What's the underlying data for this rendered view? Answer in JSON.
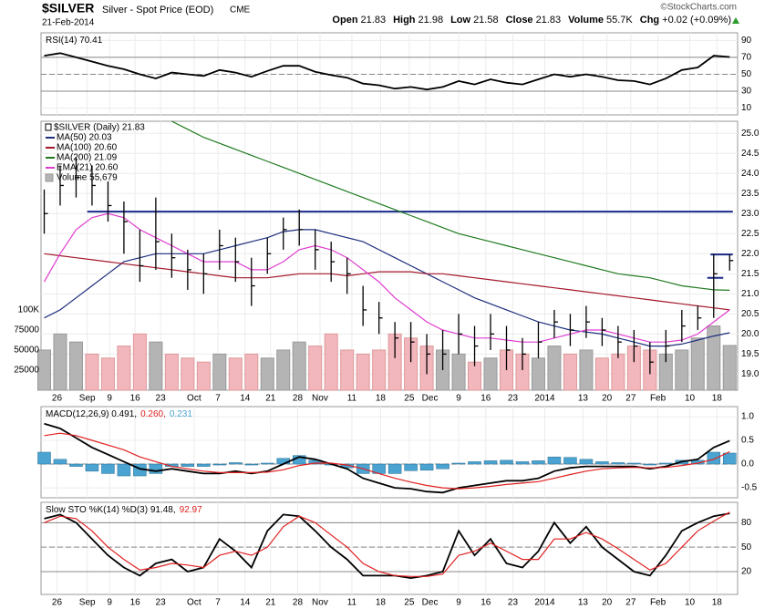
{
  "header": {
    "symbol": "$SILVER",
    "name": "Silver - Spot Price (EOD)",
    "exchange": "CME",
    "date": "21-Feb-2014",
    "credit": "©StockCharts.com",
    "quote": [
      {
        "label": "Open",
        "value": "21.83"
      },
      {
        "label": "High",
        "value": "21.98"
      },
      {
        "label": "Low",
        "value": "21.58"
      },
      {
        "label": "Close",
        "value": "21.83"
      },
      {
        "label": "Volume",
        "value": "55.7K"
      },
      {
        "label": "Chg",
        "value": "+0.02 (+0.09%)"
      }
    ]
  },
  "chart_data": [
    {
      "type": "line",
      "ylim": [
        2,
        99
      ],
      "yticks": [
        10,
        30,
        50,
        70,
        90
      ],
      "hlines": [
        {
          "value": 30
        },
        {
          "value": 70
        }
      ],
      "midline": 50,
      "series": [
        {
          "name": "RSI(14) 70.41",
          "color": "#000000",
          "values": [
            72,
            75,
            70,
            65,
            60,
            56,
            50,
            45,
            52,
            50,
            48,
            55,
            52,
            47,
            54,
            60,
            60,
            53,
            49,
            46,
            39,
            37,
            33,
            35,
            32,
            35,
            42,
            38,
            44,
            40,
            38,
            44,
            50,
            47,
            50,
            47,
            43,
            42,
            38,
            45,
            55,
            58,
            72,
            70.41
          ]
        }
      ]
    },
    {
      "type": "ohlc",
      "title": "$SILVER (Daily) 21.83",
      "xlim": [
        -0.2,
        43.5
      ],
      "xticks": [
        {
          "value": 0.8,
          "label": "26"
        },
        {
          "value": 2.7,
          "label": "Sep"
        },
        {
          "value": 4.1,
          "label": "9"
        },
        {
          "value": 5.7,
          "label": "16"
        },
        {
          "value": 7.3,
          "label": "23"
        },
        {
          "value": 9.4,
          "label": "Oct"
        },
        {
          "value": 10.9,
          "label": "7"
        },
        {
          "value": 12.6,
          "label": "14"
        },
        {
          "value": 14.2,
          "label": "21"
        },
        {
          "value": 15.9,
          "label": "28"
        },
        {
          "value": 17.3,
          "label": "Nov"
        },
        {
          "value": 19.3,
          "label": "11"
        },
        {
          "value": 21.1,
          "label": "18"
        },
        {
          "value": 22.9,
          "label": "25"
        },
        {
          "value": 24.2,
          "label": "Dec"
        },
        {
          "value": 26.0,
          "label": "9"
        },
        {
          "value": 27.7,
          "label": "16"
        },
        {
          "value": 29.4,
          "label": "23"
        },
        {
          "value": 31.4,
          "label": "2014"
        },
        {
          "value": 33.8,
          "label": "13"
        },
        {
          "value": 35.3,
          "label": "20"
        },
        {
          "value": 36.8,
          "label": "27"
        },
        {
          "value": 38.5,
          "label": "Feb"
        },
        {
          "value": 40.5,
          "label": "10"
        },
        {
          "value": 42.2,
          "label": "18"
        }
      ],
      "ylim": [
        18.6,
        25.3
      ],
      "yticks": [
        {
          "value": 19,
          "label": "19.0"
        },
        19.5,
        {
          "value": 20,
          "label": "20.0"
        },
        20.5,
        {
          "value": 21,
          "label": "21.0"
        },
        21.5,
        {
          "value": 22,
          "label": "22.0"
        },
        22.5,
        {
          "value": 23,
          "label": "23.0"
        },
        23.5,
        {
          "value": 24,
          "label": "24.0"
        },
        24.5,
        {
          "value": 25,
          "label": "25.0"
        }
      ],
      "bar_color": "#000000",
      "high": [
        23.6,
        24.2,
        24.4,
        24.2,
        23.8,
        23.3,
        22.6,
        23.4,
        22.5,
        22.1,
        22.0,
        22.6,
        22.4,
        21.9,
        22.4,
        22.9,
        23.1,
        22.6,
        22.3,
        21.9,
        21.2,
        20.8,
        20.3,
        20.3,
        20.0,
        20.1,
        20.5,
        20.2,
        20.5,
        20.2,
        19.9,
        20.3,
        20.6,
        20.5,
        20.7,
        20.4,
        20.2,
        20.1,
        19.8,
        20.1,
        20.6,
        20.7,
        22.0,
        21.98
      ],
      "low": [
        22.5,
        23.2,
        23.4,
        23.2,
        22.8,
        22.0,
        21.3,
        21.6,
        21.4,
        21.1,
        21.0,
        21.6,
        21.3,
        20.7,
        21.5,
        22.1,
        22.2,
        21.6,
        21.3,
        21.0,
        20.2,
        20.0,
        19.4,
        19.3,
        19.0,
        19.1,
        19.5,
        19.2,
        19.6,
        19.1,
        19.1,
        19.4,
        19.9,
        19.7,
        19.9,
        19.7,
        19.4,
        19.3,
        19.0,
        19.3,
        19.8,
        20.1,
        20.4,
        21.58
      ],
      "close": [
        23.0,
        23.7,
        23.9,
        23.7,
        23.2,
        22.8,
        21.7,
        22.3,
        21.9,
        21.6,
        21.5,
        22.2,
        21.8,
        21.2,
        22.0,
        22.6,
        22.6,
        22.1,
        21.8,
        21.5,
        20.6,
        20.4,
        19.9,
        19.8,
        19.5,
        19.5,
        20.0,
        19.7,
        20.0,
        19.6,
        19.5,
        19.8,
        20.3,
        20.1,
        20.3,
        20.1,
        19.8,
        19.7,
        19.3,
        19.7,
        20.2,
        20.4,
        21.5,
        21.83
      ],
      "series": [
        {
          "name": "MA(50) 20.03",
          "color": "#1c2c7c",
          "values": [
            20.4,
            20.6,
            20.9,
            21.2,
            21.5,
            21.8,
            21.9,
            22.0,
            22.0,
            22.0,
            22.0,
            22.1,
            22.2,
            22.3,
            22.4,
            22.55,
            22.6,
            22.6,
            22.5,
            22.4,
            22.3,
            22.1,
            21.9,
            21.7,
            21.5,
            21.3,
            21.1,
            20.9,
            20.75,
            20.6,
            20.45,
            20.3,
            20.2,
            20.1,
            20.05,
            20.0,
            19.9,
            19.8,
            19.7,
            19.7,
            19.75,
            19.85,
            19.95,
            20.03
          ]
        },
        {
          "name": "MA(100) 20.60",
          "color": "#a3182c",
          "values": [
            22.0,
            21.95,
            21.9,
            21.85,
            21.8,
            21.75,
            21.7,
            21.65,
            21.6,
            21.55,
            21.5,
            21.45,
            21.4,
            21.4,
            21.4,
            21.45,
            21.5,
            21.5,
            21.5,
            21.45,
            21.5,
            21.55,
            21.55,
            21.55,
            21.5,
            21.5,
            21.45,
            21.4,
            21.35,
            21.3,
            21.25,
            21.2,
            21.15,
            21.1,
            21.05,
            21.0,
            20.95,
            20.9,
            20.85,
            20.8,
            20.75,
            20.7,
            20.65,
            20.6
          ]
        },
        {
          "name": "MA(200) 21.09",
          "color": "#1f7a1f",
          "values": [
            null,
            null,
            null,
            null,
            null,
            null,
            null,
            null,
            25.3,
            25.1,
            24.9,
            24.75,
            24.6,
            24.45,
            24.3,
            24.15,
            24.0,
            23.85,
            23.7,
            23.55,
            23.4,
            23.25,
            23.1,
            22.95,
            22.8,
            22.65,
            22.5,
            22.4,
            22.3,
            22.2,
            22.1,
            22.0,
            21.9,
            21.8,
            21.7,
            21.6,
            21.5,
            21.45,
            21.4,
            21.3,
            21.2,
            21.15,
            21.1,
            21.09
          ]
        },
        {
          "name": "EMA(21) 20.60",
          "color": "#e03cd0",
          "values": [
            21.3,
            22.0,
            22.6,
            22.9,
            23.0,
            22.9,
            22.6,
            22.4,
            22.2,
            22.0,
            21.8,
            21.8,
            21.8,
            21.6,
            21.6,
            21.8,
            22.1,
            22.2,
            22.1,
            21.9,
            21.6,
            21.3,
            20.9,
            20.6,
            20.3,
            20.1,
            20.0,
            19.9,
            19.9,
            19.85,
            19.8,
            19.8,
            19.9,
            20.0,
            20.1,
            20.1,
            20.0,
            19.9,
            19.8,
            19.8,
            19.85,
            20.0,
            20.3,
            20.6
          ]
        }
      ],
      "volume": {
        "name": "Volume 55,679",
        "up_color": "#b4b4b4",
        "down_color": "#f2b6bd",
        "ylim": [
          0,
          335000
        ],
        "ticks": [
          25000,
          50000,
          75000,
          {
            "value": 100000,
            "label": "100K"
          }
        ],
        "values": [
          50000,
          70000,
          60000,
          45000,
          40000,
          55000,
          70000,
          60000,
          45000,
          40000,
          35000,
          45000,
          40000,
          45000,
          40000,
          50000,
          60000,
          55000,
          70000,
          50000,
          45000,
          50000,
          70000,
          65000,
          55000,
          50000,
          45000,
          35000,
          40000,
          50000,
          45000,
          40000,
          55000,
          45000,
          50000,
          40000,
          45000,
          55000,
          50000,
          45000,
          50000,
          65000,
          80000,
          55679
        ]
      },
      "hlines": [
        {
          "value": 23.05,
          "x": [
            2.7,
            43.2
          ]
        },
        {
          "value": 21.98,
          "x": [
            41.8,
            43.2
          ]
        },
        {
          "value": 21.4,
          "x": [
            41.6,
            42.6
          ]
        }
      ],
      "hline_color": "#1a2a8a"
    },
    {
      "type": "line",
      "ylim": [
        -0.71,
        1.21
      ],
      "yticks": [
        -0.5,
        {
          "value": 0,
          "label": "0.0"
        },
        0.5,
        {
          "value": 1,
          "label": "1.0"
        }
      ],
      "midline": 0,
      "series": [
        {
          "name": "MACD(12,26,9) 0.491,",
          "color": "#000000",
          "values": [
            0.85,
            0.75,
            0.55,
            0.35,
            0.2,
            0.05,
            -0.1,
            -0.15,
            -0.1,
            -0.15,
            -0.2,
            -0.2,
            -0.15,
            -0.2,
            -0.15,
            0.0,
            0.15,
            0.1,
            0.0,
            -0.1,
            -0.3,
            -0.4,
            -0.5,
            -0.52,
            -0.58,
            -0.6,
            -0.5,
            -0.45,
            -0.4,
            -0.35,
            -0.35,
            -0.3,
            -0.15,
            -0.08,
            -0.05,
            -0.05,
            -0.05,
            -0.05,
            -0.1,
            -0.05,
            0.05,
            0.1,
            0.35,
            0.491
          ]
        },
        {
          "name": "0.260,",
          "color": "#e02020",
          "values": [
            0.6,
            0.65,
            0.6,
            0.5,
            0.4,
            0.3,
            0.15,
            0.05,
            -0.05,
            -0.1,
            -0.15,
            -0.18,
            -0.18,
            -0.18,
            -0.17,
            -0.12,
            -0.03,
            0.02,
            0.02,
            -0.02,
            -0.1,
            -0.2,
            -0.3,
            -0.38,
            -0.45,
            -0.5,
            -0.52,
            -0.5,
            -0.47,
            -0.43,
            -0.4,
            -0.37,
            -0.3,
            -0.22,
            -0.15,
            -0.1,
            -0.08,
            -0.07,
            -0.08,
            -0.07,
            -0.03,
            0.02,
            0.1,
            0.26
          ]
        },
        {
          "name": "0.231",
          "color": "#4aa3d0",
          "style": "bar",
          "values": [
            0.25,
            0.1,
            -0.05,
            -0.15,
            -0.2,
            -0.25,
            -0.25,
            -0.2,
            -0.05,
            -0.05,
            -0.05,
            -0.02,
            0.03,
            -0.02,
            0.02,
            0.12,
            0.18,
            0.08,
            -0.02,
            -0.08,
            -0.2,
            -0.2,
            -0.2,
            -0.14,
            -0.13,
            -0.1,
            0.02,
            0.05,
            0.07,
            0.08,
            0.05,
            0.07,
            0.15,
            0.14,
            0.1,
            0.05,
            0.03,
            0.02,
            -0.02,
            0.02,
            0.08,
            0.08,
            0.25,
            0.231
          ]
        }
      ]
    },
    {
      "type": "line",
      "xlim": [
        -0.2,
        43.5
      ],
      "xticks": [
        {
          "value": 0.8,
          "label": "26"
        },
        {
          "value": 2.7,
          "label": "Sep"
        },
        {
          "value": 4.1,
          "label": "9"
        },
        {
          "value": 5.7,
          "label": "16"
        },
        {
          "value": 7.3,
          "label": "23"
        },
        {
          "value": 9.4,
          "label": "Oct"
        },
        {
          "value": 10.9,
          "label": "7"
        },
        {
          "value": 12.6,
          "label": "14"
        },
        {
          "value": 14.2,
          "label": "21"
        },
        {
          "value": 15.9,
          "label": "28"
        },
        {
          "value": 17.3,
          "label": "Nov"
        },
        {
          "value": 19.3,
          "label": "11"
        },
        {
          "value": 21.1,
          "label": "18"
        },
        {
          "value": 22.9,
          "label": "25"
        },
        {
          "value": 24.2,
          "label": "Dec"
        },
        {
          "value": 26.0,
          "label": "9"
        },
        {
          "value": 27.7,
          "label": "16"
        },
        {
          "value": 29.4,
          "label": "23"
        },
        {
          "value": 31.4,
          "label": "2014"
        },
        {
          "value": 33.8,
          "label": "13"
        },
        {
          "value": 35.3,
          "label": "20"
        },
        {
          "value": 36.8,
          "label": "27"
        },
        {
          "value": 38.5,
          "label": "Feb"
        },
        {
          "value": 40.5,
          "label": "10"
        },
        {
          "value": 42.2,
          "label": "18"
        }
      ],
      "ylim": [
        -8,
        105
      ],
      "yticks": [
        20,
        50,
        80
      ],
      "hlines": [
        {
          "value": 20
        },
        {
          "value": 80
        }
      ],
      "midline": 50,
      "series": [
        {
          "name": "Slow STO %K(14) %D(3) 91.48,",
          "color": "#000000",
          "values": [
            85,
            90,
            80,
            60,
            40,
            25,
            15,
            30,
            35,
            20,
            25,
            60,
            45,
            25,
            70,
            90,
            88,
            70,
            50,
            35,
            15,
            15,
            15,
            12,
            15,
            20,
            70,
            40,
            60,
            30,
            25,
            45,
            80,
            55,
            75,
            50,
            35,
            20,
            15,
            40,
            70,
            80,
            88,
            91.48
          ]
        },
        {
          "name": "92.97",
          "color": "#e02020",
          "values": [
            80,
            88,
            85,
            70,
            50,
            35,
            22,
            25,
            30,
            28,
            25,
            40,
            45,
            40,
            50,
            75,
            88,
            80,
            65,
            50,
            30,
            20,
            15,
            14,
            14,
            17,
            40,
            45,
            55,
            45,
            35,
            35,
            60,
            60,
            68,
            60,
            48,
            35,
            22,
            30,
            50,
            70,
            82,
            92.97
          ]
        }
      ]
    }
  ]
}
